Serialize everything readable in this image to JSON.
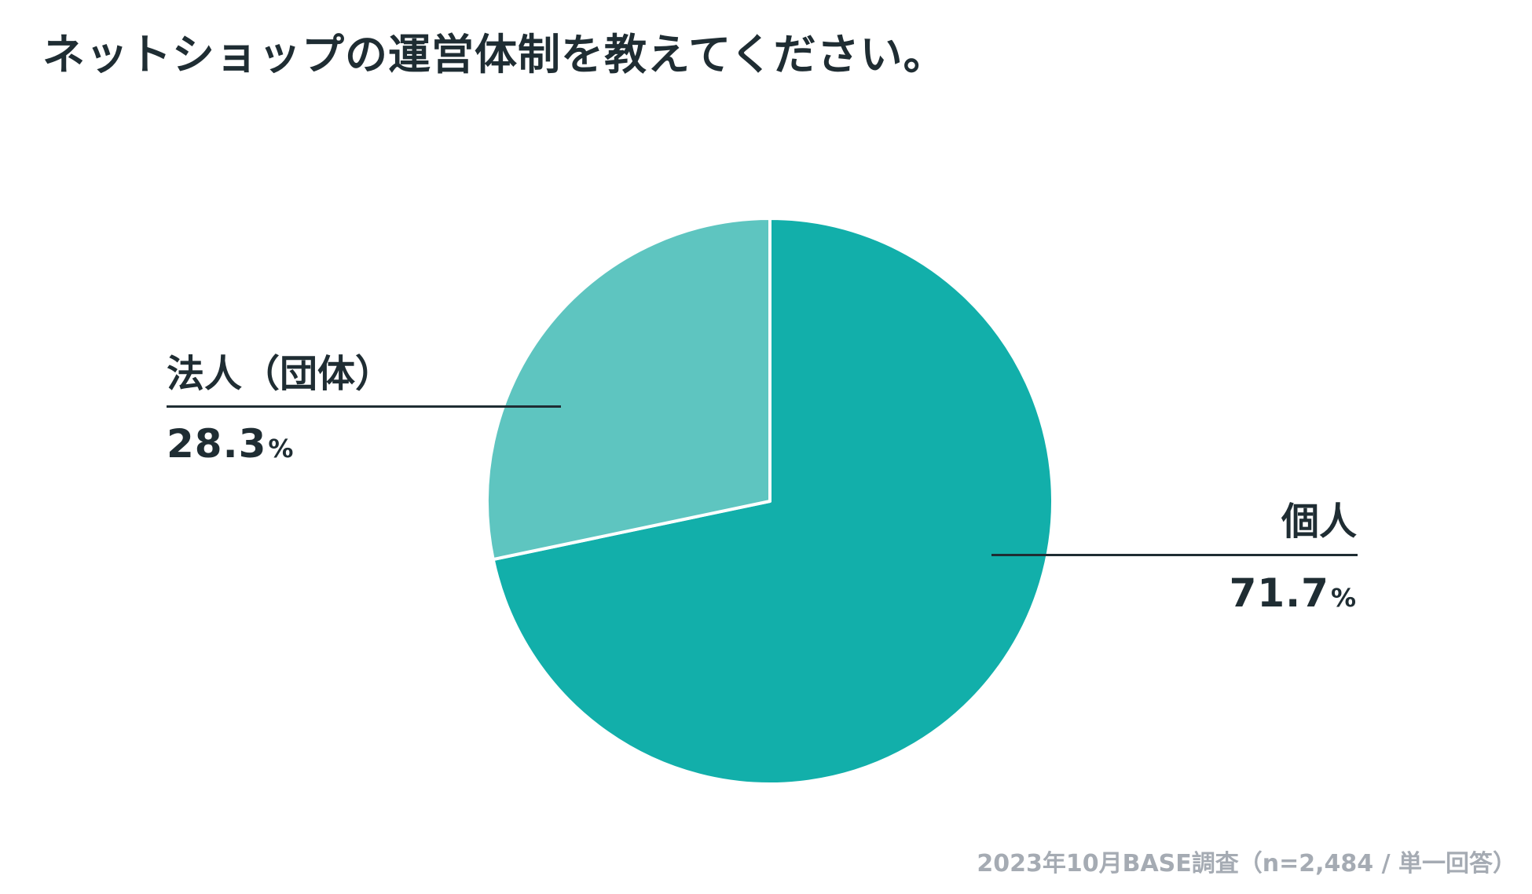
{
  "title": "ネットショップの運営体制を教えてください。",
  "source": "2023年10月BASE調査（n=2,484 / 単一回答）",
  "colors": {
    "individual": "#12afaa",
    "corporate": "#5ec5c0",
    "text": "#1f2d33",
    "source_text": "#a5abb3"
  },
  "chart_data": {
    "type": "pie",
    "title": "ネットショップの運営体制を教えてください。",
    "slices": [
      {
        "label": "個人",
        "value": 71.7,
        "value_text": "71.7",
        "unit": "%"
      },
      {
        "label": "法人（団体）",
        "value": 28.3,
        "value_text": "28.3",
        "unit": "%"
      }
    ],
    "start_angle": "12 o'clock",
    "direction": "clockwise"
  }
}
